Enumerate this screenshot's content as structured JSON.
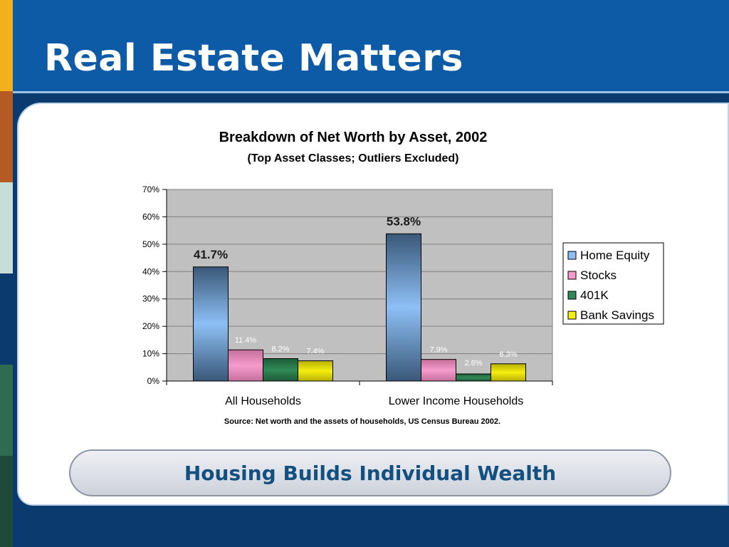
{
  "slide": {
    "title": "Real Estate Matters",
    "banner": "Housing Builds Individual Wealth",
    "colors": {
      "background": "#0b3a6e",
      "top_band": "#0d5aa7",
      "left_strip": [
        "#f2b11c",
        "#b35a25",
        "#c7ddd8",
        "#0b3a6e",
        "#2f6b4f",
        "#1f4a3a"
      ]
    }
  },
  "chart_data": {
    "type": "bar",
    "title": "Breakdown of Net Worth by Asset, 2002",
    "subtitle": "(Top Asset Classes; Outliers Excluded)",
    "source": "Source: Net worth and the assets of households, US Census Bureau 2002.",
    "categories": [
      "All Households",
      "Lower Income Households"
    ],
    "series": [
      {
        "name": "Home Equity",
        "values": [
          41.7,
          53.8
        ],
        "color": "#8dbff5"
      },
      {
        "name": "Stocks",
        "values": [
          11.4,
          7.9
        ],
        "color": "#f59ccc"
      },
      {
        "name": "401K",
        "values": [
          8.2,
          2.6
        ],
        "color": "#2f8a56"
      },
      {
        "name": "Bank Savings",
        "values": [
          7.4,
          6.3
        ],
        "color": "#f5ee10"
      }
    ],
    "data_labels": [
      [
        "41.7%",
        "53.8%"
      ],
      [
        "11.4%",
        "7.9%"
      ],
      [
        "8.2%",
        "2.6%"
      ],
      [
        "7.4%",
        "6.3%"
      ]
    ],
    "y_ticks": [
      "0%",
      "10%",
      "20%",
      "30%",
      "40%",
      "50%",
      "60%",
      "70%"
    ],
    "ylim": [
      0,
      70
    ],
    "grid": true,
    "legend_position": "right"
  }
}
